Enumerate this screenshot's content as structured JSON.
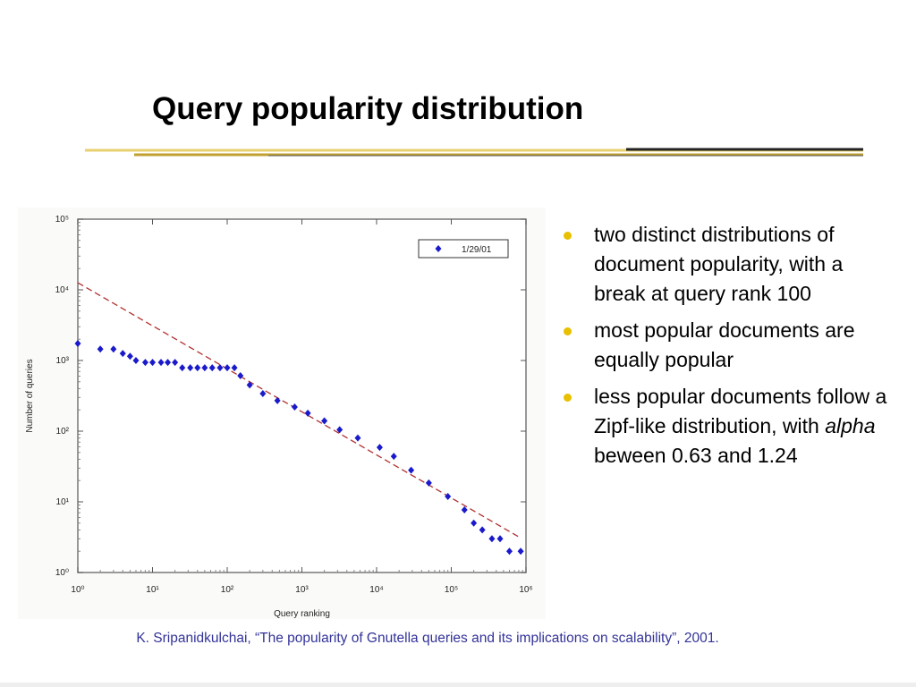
{
  "title": "Query popularity distribution",
  "bullets": [
    "two distinct distributions of document popularity, with a break at query rank 100",
    "most popular documents are equally popular",
    {
      "before": "less popular documents follow a Zipf-like distribution, with ",
      "em": "alpha",
      "after": " beween 0.63 and 1.24"
    }
  ],
  "citation": "K. Sripanidkulchai, “The popularity of Gnutella queries and its implications on scalability”, 2001.",
  "chart_data": {
    "type": "scatter",
    "x_label": "Query ranking",
    "y_label": "Number of queries",
    "xscale": "log",
    "yscale": "log",
    "xlim": [
      1,
      1000000
    ],
    "ylim": [
      1,
      100000
    ],
    "xticks": [
      {
        "value": 1,
        "label": "10⁰"
      },
      {
        "value": 10,
        "label": "10¹"
      },
      {
        "value": 100,
        "label": "10²"
      },
      {
        "value": 1000,
        "label": "10³"
      },
      {
        "value": 10000,
        "label": "10⁴"
      },
      {
        "value": 100000,
        "label": "10⁵"
      },
      {
        "value": 1000000,
        "label": "10⁶"
      }
    ],
    "yticks": [
      {
        "value": 1,
        "label": "10⁰"
      },
      {
        "value": 10,
        "label": "10¹"
      },
      {
        "value": 100,
        "label": "10²"
      },
      {
        "value": 1000,
        "label": "10³"
      },
      {
        "value": 10000,
        "label": "10⁴"
      },
      {
        "value": 100000,
        "label": "10⁵"
      }
    ],
    "legend": "upper right",
    "series": [
      {
        "name": "1/29/01",
        "color": "#1a1acc",
        "x": [
          1,
          2,
          3,
          4,
          5,
          6,
          8,
          10,
          13,
          16,
          20,
          25,
          32,
          40,
          50,
          63,
          80,
          100,
          125,
          150,
          200,
          300,
          470,
          800,
          1200,
          2000,
          3200,
          5600,
          11000,
          17000,
          29000,
          50000,
          90000,
          150000,
          200000,
          260000,
          350000,
          450000,
          600000,
          850000
        ],
        "values": [
          1740,
          1450,
          1450,
          1260,
          1150,
          1000,
          940,
          940,
          940,
          940,
          940,
          790,
          790,
          790,
          790,
          790,
          790,
          790,
          790,
          610,
          450,
          340,
          270,
          220,
          180,
          140,
          105,
          80,
          59,
          44,
          28,
          18.5,
          11.9,
          7.7,
          5,
          4,
          3,
          3,
          2,
          2
        ]
      }
    ],
    "fit": {
      "x": [
        1,
        800000
      ],
      "values": [
        12600,
        3.2
      ],
      "color": "#b03030"
    }
  }
}
